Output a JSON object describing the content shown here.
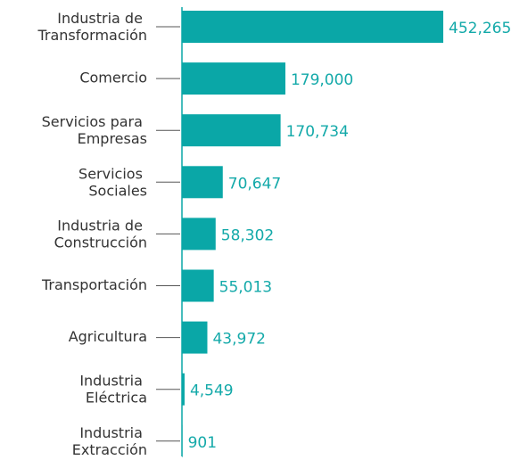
{
  "chart_data": {
    "type": "bar",
    "orientation": "horizontal",
    "categories": [
      "Industria de Transformación",
      "Comercio",
      "Servicios para Empresas",
      "Servicios Sociales",
      "Industria de Construcción",
      "Transportación",
      "Agricultura",
      "Industria Eléctrica",
      "Industria Extracción"
    ],
    "values": [
      452265,
      179000,
      170734,
      70647,
      58302,
      55013,
      43972,
      4549,
      901
    ],
    "value_labels": [
      "452,265",
      "179,000",
      "170,734",
      "70,647",
      "58,302",
      "55,013",
      "43,972",
      "4,549",
      "901"
    ],
    "color": "#0aa7a7"
  }
}
